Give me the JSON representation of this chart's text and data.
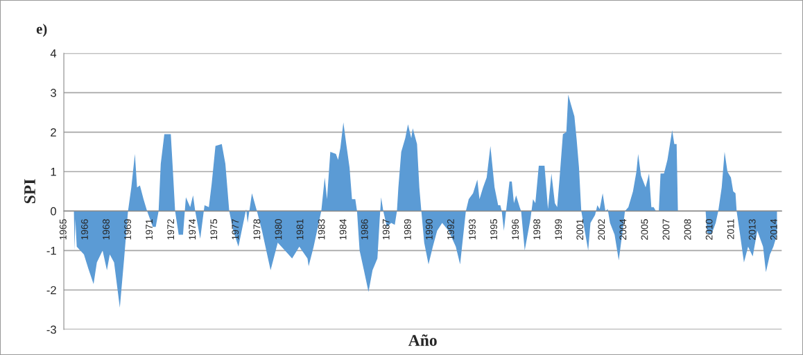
{
  "chart_data": {
    "type": "area",
    "title": "e)",
    "xlabel": "Año",
    "ylabel": "SPI",
    "series": [
      {
        "color": "#5b9bd5",
        "x": [
          1965.0,
          1965.7,
          1965.75,
          1965.8,
          1965.9,
          1966.4,
          1966.7,
          1967.07,
          1967.3,
          1967.7,
          1968.0,
          1968.2,
          1968.5,
          1968.9,
          1969.2,
          1969.47,
          1969.7,
          1969.95,
          1970.1,
          1970.3,
          1970.55,
          1970.8,
          1971.2,
          1971.4,
          1971.6,
          1971.75,
          1972.0,
          1972.45,
          1972.6,
          1972.75,
          1973.0,
          1973.3,
          1973.5,
          1973.8,
          1974.0,
          1974.15,
          1974.5,
          1974.8,
          1975.1,
          1975.3,
          1975.56,
          1976.0,
          1976.25,
          1976.52,
          1976.8,
          1977.16,
          1977.5,
          1977.7,
          1977.8,
          1978.1,
          1978.45,
          1978.8,
          1979.4,
          1979.9,
          1980.4,
          1980.9,
          1981.4,
          1981.97,
          1982.05,
          1982.4,
          1982.93,
          1983.17,
          1983.33,
          1983.56,
          1983.95,
          1984.1,
          1984.26,
          1984.47,
          1984.67,
          1984.9,
          1985.07,
          1985.3,
          1985.42,
          1985.6,
          1985.9,
          1986.22,
          1986.5,
          1986.84,
          1987.0,
          1987.1,
          1987.25,
          1987.5,
          1987.8,
          1988.05,
          1988.2,
          1988.3,
          1988.5,
          1988.78,
          1988.97,
          1989.2,
          1989.3,
          1989.6,
          1989.76,
          1989.9,
          1990.1,
          1990.4,
          1990.7,
          1991.0,
          1991.35,
          1991.8,
          1992.3,
          1992.6,
          1993.0,
          1993.2,
          1993.5,
          1993.8,
          1993.95,
          1994.2,
          1994.45,
          1994.71,
          1995.0,
          1995.25,
          1995.4,
          1995.5,
          1995.65,
          1995.8,
          1996.04,
          1996.2,
          1996.35,
          1996.5,
          1996.75,
          1996.85,
          1997.1,
          1997.5,
          1997.68,
          1997.84,
          1998.08,
          1998.48,
          1998.72,
          1998.96,
          1999.2,
          1999.36,
          1999.52,
          1999.76,
          2000.0,
          2000.13,
          2000.32,
          2000.56,
          2000.72,
          2000.88,
          2001.04,
          2001.28,
          2001.52,
          2001.68,
          2002.0,
          2002.16,
          2002.32,
          2002.53,
          2002.72,
          2002.88,
          2003.04,
          2003.36,
          2003.65,
          2003.92,
          2004.08,
          2004.32,
          2004.64,
          2004.88,
          2005.0,
          2005.2,
          2005.52,
          2005.76,
          2005.92,
          2006.08,
          2006.24,
          2006.44,
          2006.56,
          2006.8,
          2007.04,
          2007.37,
          2007.52,
          2007.68,
          2007.77,
          2009.7,
          2009.8,
          2010.1,
          2010.4,
          2010.58,
          2010.82,
          2011.02,
          2011.22,
          2011.46,
          2011.62,
          2011.78,
          2011.86,
          2012.1,
          2012.37,
          2012.66,
          2012.98,
          2013.3,
          2013.7,
          2013.9,
          2014.18,
          2014.42,
          2014.67
        ],
        "values": [
          0,
          0,
          -1.0,
          -0.2,
          -0.9,
          -1.1,
          -1.45,
          -1.85,
          -1.3,
          -1.0,
          -1.5,
          -1.1,
          -1.3,
          -2.45,
          -1.2,
          0,
          0.6,
          1.45,
          0.6,
          0.65,
          0.3,
          0,
          -0.4,
          -0.4,
          0,
          1.2,
          1.95,
          1.95,
          1.0,
          0,
          -0.6,
          -0.6,
          0.35,
          0.1,
          0.4,
          0,
          -0.7,
          0.15,
          0.1,
          0.7,
          1.65,
          1.7,
          1.2,
          0,
          -0.5,
          -0.9,
          -0.3,
          0.05,
          -0.3,
          0.45,
          0,
          -0.5,
          -1.5,
          -0.8,
          -1.0,
          -1.2,
          -0.9,
          -1.2,
          -1.4,
          -0.9,
          0,
          0.85,
          0.3,
          1.5,
          1.45,
          1.3,
          1.6,
          2.25,
          1.7,
          1.1,
          0.3,
          0.3,
          0,
          -1.0,
          -1.5,
          -2.05,
          -1.5,
          -1.2,
          -0.2,
          0.35,
          0,
          -0.4,
          -0.3,
          -0.35,
          0,
          0.6,
          1.5,
          1.85,
          2.2,
          1.85,
          2.1,
          1.7,
          0.6,
          0,
          -0.8,
          -1.35,
          -0.9,
          -0.5,
          -0.3,
          -0.5,
          -0.9,
          -1.35,
          0,
          0.3,
          0.45,
          0.8,
          0.3,
          0.6,
          0.85,
          1.65,
          0.6,
          0.15,
          0.15,
          0,
          -0.5,
          0,
          0.75,
          0.75,
          0.2,
          0.4,
          0.1,
          0,
          -1.0,
          -0.2,
          0.3,
          0.2,
          1.15,
          1.15,
          0.05,
          0.95,
          0.2,
          0.1,
          0.8,
          1.95,
          2.0,
          2.95,
          2.7,
          2.4,
          1.8,
          1.1,
          0,
          -0.5,
          -1.0,
          -0.3,
          -0.1,
          0.15,
          0.05,
          0.45,
          0,
          0.05,
          -0.3,
          -0.6,
          -1.25,
          -0.5,
          0,
          0.1,
          0.5,
          1.0,
          1.45,
          0.9,
          0.6,
          0.95,
          0.1,
          0.1,
          0,
          0,
          0.95,
          0.95,
          1.3,
          2.05,
          1.7,
          1.7,
          0,
          0,
          -0.55,
          -0.6,
          -0.3,
          0,
          0.6,
          1.5,
          1.0,
          0.85,
          0.5,
          0.45,
          0,
          -0.6,
          -1.3,
          -0.9,
          -1.15,
          -0.5,
          -0.9,
          -1.55,
          -1.1,
          -0.9,
          -0.6
        ]
      }
    ],
    "xlim": [
      1965,
      2015
    ],
    "xticks": [
      {
        "value": 1965,
        "label": "1965"
      },
      {
        "value": 1966.5,
        "label": "1966"
      },
      {
        "value": 1968,
        "label": "1968"
      },
      {
        "value": 1969.5,
        "label": "1969"
      },
      {
        "value": 1971,
        "label": "1971"
      },
      {
        "value": 1972.5,
        "label": "1972"
      },
      {
        "value": 1974,
        "label": "1974"
      },
      {
        "value": 1975.5,
        "label": "1975"
      },
      {
        "value": 1977,
        "label": "1977"
      },
      {
        "value": 1978.5,
        "label": "1978"
      },
      {
        "value": 1980,
        "label": "1980"
      },
      {
        "value": 1981.5,
        "label": "1981"
      },
      {
        "value": 1983,
        "label": "1983"
      },
      {
        "value": 1984.5,
        "label": "1984"
      },
      {
        "value": 1986,
        "label": "1986"
      },
      {
        "value": 1987.5,
        "label": "1987"
      },
      {
        "value": 1989,
        "label": "1989"
      },
      {
        "value": 1990.5,
        "label": "1990"
      },
      {
        "value": 1992,
        "label": "1992"
      },
      {
        "value": 1993.5,
        "label": "1993"
      },
      {
        "value": 1995,
        "label": "1995"
      },
      {
        "value": 1996.5,
        "label": "1996"
      },
      {
        "value": 1998,
        "label": "1998"
      },
      {
        "value": 1999.5,
        "label": "1999"
      },
      {
        "value": 2001,
        "label": "2001"
      },
      {
        "value": 2002.5,
        "label": "2002"
      },
      {
        "value": 2004,
        "label": "2004"
      },
      {
        "value": 2005.5,
        "label": "2005"
      },
      {
        "value": 2007,
        "label": "2007"
      },
      {
        "value": 2008.5,
        "label": "2008"
      },
      {
        "value": 2010,
        "label": "2010"
      },
      {
        "value": 2011.5,
        "label": "2011"
      },
      {
        "value": 2013,
        "label": "2013"
      },
      {
        "value": 2014.5,
        "label": "2014"
      }
    ],
    "ylim": [
      -3,
      4
    ],
    "yticks": [
      -3,
      -2,
      -1,
      0,
      1,
      2,
      3,
      4
    ],
    "grid": "y",
    "legend": false
  }
}
